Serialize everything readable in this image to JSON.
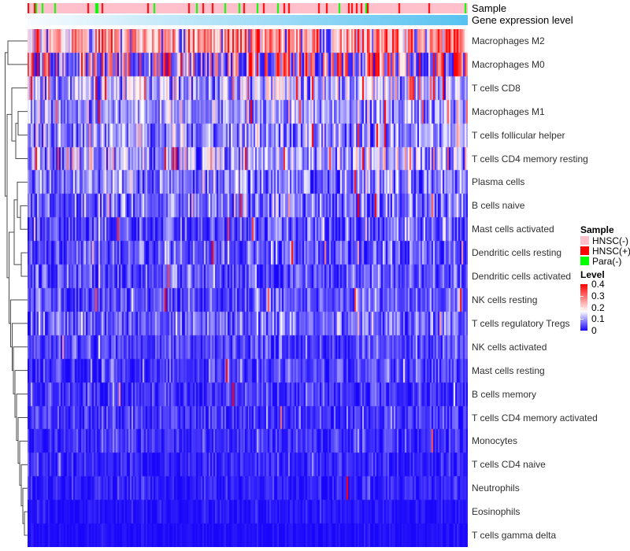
{
  "annotation_tracks": {
    "sample_label": "Sample",
    "gene_label": "Gene expression level",
    "gene_gradient_start": "#F8FBFE",
    "gene_gradient_end": "#57C2F0"
  },
  "legend": {
    "sample_title": "Sample",
    "sample_items": [
      {
        "label": "HNSC(-)",
        "color": "#FFC0CB"
      },
      {
        "label": "HNSC(+)",
        "color": "#FF0000"
      },
      {
        "label": "Para(-)",
        "color": "#00FF00"
      }
    ],
    "level_title": "Level",
    "level_ticks": [
      "0.4",
      "0.3",
      "0.2",
      "0.1",
      "0"
    ]
  },
  "chart_data": {
    "type": "heatmap",
    "title": "",
    "columns": 280,
    "value_range": [
      0,
      0.4
    ],
    "colormap": {
      "low": "#1906FA",
      "mid": "#FFFFFF",
      "high": "#FF0000",
      "white_point": 0.165
    },
    "sample_track_fractions": {
      "HNSC(-)": 0.865,
      "HNSC(+)": 0.08,
      "Para(-)": 0.055
    },
    "rows": [
      {
        "label": "Macrophages M2",
        "mean": 0.25,
        "sd": 0.07,
        "hot": 0.12,
        "low": 0.09,
        "bimodal": false
      },
      {
        "label": "Macrophages M0",
        "mean": 0.15,
        "sd": 0.12,
        "hot": 0.0,
        "low": 0.0,
        "bimodal": true,
        "hi_fraction": 0.45
      },
      {
        "label": "T cells CD8",
        "mean": 0.11,
        "sd": 0.055,
        "hot": 0.05,
        "low": 0.0,
        "bimodal": false
      },
      {
        "label": "Macrophages M1",
        "mean": 0.1,
        "sd": 0.05,
        "hot": 0.04,
        "low": 0.0,
        "bimodal": false
      },
      {
        "label": "T cells follicular helper",
        "mean": 0.09,
        "sd": 0.05,
        "hot": 0.025,
        "low": 0.0,
        "bimodal": false
      },
      {
        "label": "T cells CD4 memory resting",
        "mean": 0.105,
        "sd": 0.06,
        "hot": 0.06,
        "low": 0.0,
        "bimodal": false
      },
      {
        "label": "Plasma cells",
        "mean": 0.075,
        "sd": 0.05,
        "hot": 0.02,
        "low": 0.0,
        "bimodal": false
      },
      {
        "label": "B cells naive",
        "mean": 0.065,
        "sd": 0.045,
        "hot": 0.015,
        "low": 0.0,
        "bimodal": false
      },
      {
        "label": "Mast cells activated",
        "mean": 0.05,
        "sd": 0.04,
        "hot": 0.025,
        "low": 0.0,
        "bimodal": false
      },
      {
        "label": "Dendritic cells resting",
        "mean": 0.05,
        "sd": 0.04,
        "hot": 0.015,
        "low": 0.0,
        "bimodal": false
      },
      {
        "label": "Dendritic cells activated",
        "mean": 0.05,
        "sd": 0.04,
        "hot": 0.012,
        "low": 0.0,
        "bimodal": false
      },
      {
        "label": "NK cells resting",
        "mean": 0.05,
        "sd": 0.035,
        "hot": 0.01,
        "low": 0.0,
        "bimodal": false
      },
      {
        "label": "T cells regulatory  Tregs",
        "mean": 0.06,
        "sd": 0.04,
        "hot": 0.008,
        "low": 0.0,
        "bimodal": false
      },
      {
        "label": "NK cells activated",
        "mean": 0.04,
        "sd": 0.03,
        "hot": 0.006,
        "low": 0.0,
        "bimodal": false
      },
      {
        "label": "Mast cells resting",
        "mean": 0.035,
        "sd": 0.03,
        "hot": 0.006,
        "low": 0.0,
        "bimodal": false
      },
      {
        "label": "B cells memory",
        "mean": 0.03,
        "sd": 0.027,
        "hot": 0.005,
        "low": 0.0,
        "bimodal": false
      },
      {
        "label": "T cells CD4 memory activated",
        "mean": 0.03,
        "sd": 0.027,
        "hot": 0.004,
        "low": 0.0,
        "bimodal": false
      },
      {
        "label": "Monocytes",
        "mean": 0.027,
        "sd": 0.022,
        "hot": 0.003,
        "low": 0.0,
        "bimodal": false
      },
      {
        "label": "T cells CD4 naive",
        "mean": 0.02,
        "sd": 0.02,
        "hot": 0.002,
        "low": 0.0,
        "bimodal": false
      },
      {
        "label": "Neutrophils",
        "mean": 0.016,
        "sd": 0.016,
        "hot": 0.002,
        "low": 0.0,
        "bimodal": false
      },
      {
        "label": "Eosinophils",
        "mean": 0.009,
        "sd": 0.01,
        "hot": 0.001,
        "low": 0.0,
        "bimodal": false
      },
      {
        "label": "T cells gamma delta",
        "mean": 0.005,
        "sd": 0.007,
        "hot": 0.0,
        "low": 0.0,
        "bimodal": false
      }
    ],
    "dendrogram_merges": [
      [
        "r0",
        "r1",
        10
      ],
      [
        "r3",
        "r4",
        23
      ],
      [
        "m1",
        "r5",
        20
      ],
      [
        "r2",
        "m2",
        15
      ],
      [
        "r7",
        "r8",
        26
      ],
      [
        "r6",
        "m4",
        22
      ],
      [
        "r9",
        "r10",
        27
      ],
      [
        "m5",
        "m6",
        18
      ],
      [
        "r20",
        "r21",
        31
      ],
      [
        "m8",
        "r19",
        29
      ],
      [
        "m9",
        "r18",
        27
      ],
      [
        "m10",
        "r17",
        25
      ],
      [
        "m11",
        "r16",
        23
      ],
      [
        "m12",
        "r15",
        21
      ],
      [
        "m13",
        "r14",
        19
      ],
      [
        "m14",
        "r13",
        17
      ],
      [
        "m15",
        "r12",
        15.5
      ],
      [
        "m16",
        "r11",
        13.5
      ],
      [
        "m7",
        "m17",
        11.5
      ],
      [
        "m3",
        "m18",
        9
      ],
      [
        "m0",
        "m19",
        6.5
      ]
    ]
  }
}
